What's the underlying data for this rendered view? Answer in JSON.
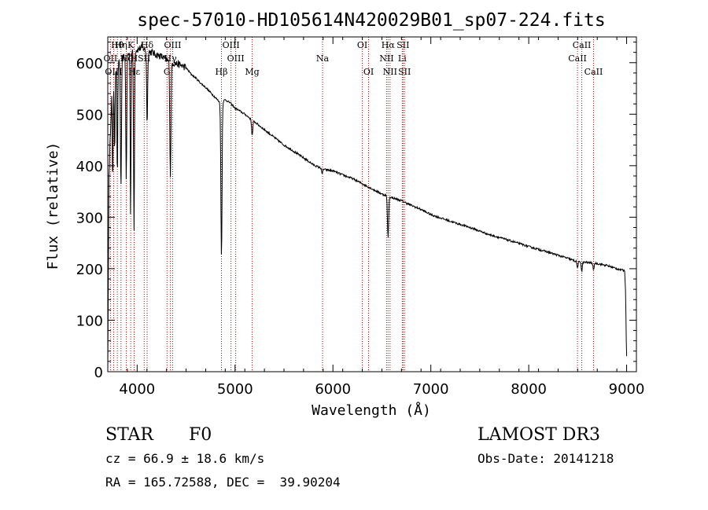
{
  "chart_data": {
    "type": "line",
    "title": "spec-57010-HD105614N420029B01_sp07-224.fits",
    "xlabel": "Wavelength (Å)",
    "ylabel": "Flux (relative)",
    "xlim": [
      3700,
      9100
    ],
    "ylim": [
      0,
      650
    ],
    "xticks": [
      4000,
      5000,
      6000,
      7000,
      8000,
      9000
    ],
    "yticks": [
      0,
      100,
      200,
      300,
      400,
      500,
      600
    ],
    "series": [
      {
        "name": "spectrum",
        "continuum": [
          [
            3700,
            0
          ],
          [
            3712,
            380
          ],
          [
            3740,
            540
          ],
          [
            3780,
            590
          ],
          [
            3820,
            600
          ],
          [
            3860,
            610
          ],
          [
            3900,
            615
          ],
          [
            3950,
            625
          ],
          [
            4000,
            625
          ],
          [
            4050,
            630
          ],
          [
            4100,
            622
          ],
          [
            4150,
            620
          ],
          [
            4200,
            615
          ],
          [
            4250,
            612
          ],
          [
            4300,
            605
          ],
          [
            4350,
            600
          ],
          [
            4400,
            598
          ],
          [
            4450,
            595
          ],
          [
            4500,
            590
          ],
          [
            4550,
            578
          ],
          [
            4600,
            570
          ],
          [
            4650,
            560
          ],
          [
            4700,
            552
          ],
          [
            4750,
            542
          ],
          [
            4800,
            532
          ],
          [
            4850,
            522
          ],
          [
            4900,
            528
          ],
          [
            4950,
            522
          ],
          [
            5000,
            512
          ],
          [
            5100,
            500
          ],
          [
            5200,
            485
          ],
          [
            5300,
            470
          ],
          [
            5400,
            455
          ],
          [
            5500,
            440
          ],
          [
            5600,
            428
          ],
          [
            5700,
            415
          ],
          [
            5800,
            402
          ],
          [
            5900,
            393
          ],
          [
            6000,
            390
          ],
          [
            6100,
            382
          ],
          [
            6200,
            375
          ],
          [
            6300,
            365
          ],
          [
            6400,
            355
          ],
          [
            6500,
            345
          ],
          [
            6600,
            338
          ],
          [
            6700,
            332
          ],
          [
            6800,
            323
          ],
          [
            6900,
            315
          ],
          [
            7000,
            305
          ],
          [
            7200,
            292
          ],
          [
            7400,
            280
          ],
          [
            7600,
            266
          ],
          [
            7800,
            255
          ],
          [
            8000,
            243
          ],
          [
            8200,
            232
          ],
          [
            8400,
            220
          ],
          [
            8500,
            213
          ],
          [
            8600,
            212
          ],
          [
            8700,
            210
          ],
          [
            8800,
            206
          ],
          [
            8900,
            200
          ],
          [
            8980,
            196
          ],
          [
            8990,
            150
          ],
          [
            8995,
            70
          ],
          [
            9000,
            30
          ]
        ],
        "absorption": [
          {
            "center": 3750,
            "depth": 190,
            "width": 4
          },
          {
            "center": 3770,
            "depth": 160,
            "width": 4
          },
          {
            "center": 3798,
            "depth": 220,
            "width": 4
          },
          {
            "center": 3835,
            "depth": 250,
            "width": 5
          },
          {
            "center": 3889,
            "depth": 240,
            "width": 5
          },
          {
            "center": 3933,
            "depth": 320,
            "width": 4
          },
          {
            "center": 3968,
            "depth": 350,
            "width": 5
          },
          {
            "center": 4102,
            "depth": 140,
            "width": 5
          },
          {
            "center": 4340,
            "depth": 220,
            "width": 6
          },
          {
            "center": 4861,
            "depth": 300,
            "width": 6
          },
          {
            "center": 5175,
            "depth": 30,
            "width": 6
          },
          {
            "center": 5890,
            "depth": 12,
            "width": 4
          },
          {
            "center": 6563,
            "depth": 80,
            "width": 6
          },
          {
            "center": 8498,
            "depth": 12,
            "width": 5
          },
          {
            "center": 8542,
            "depth": 18,
            "width": 5
          },
          {
            "center": 8662,
            "depth": 15,
            "width": 5
          }
        ]
      }
    ],
    "lines": [
      {
        "label": "Hθ",
        "x": 3798,
        "row": 1
      },
      {
        "label": "OII",
        "x": 3727,
        "row": 2
      },
      {
        "label": "OIII",
        "x": 3760,
        "row": 3
      },
      {
        "label": "Hη",
        "x": 3835,
        "row": 1
      },
      {
        "label": "Hζ",
        "x": 3889,
        "row": 2
      },
      {
        "label": "Hε",
        "x": 3970,
        "row": 3
      },
      {
        "label": "K",
        "x": 3934,
        "row": 1
      },
      {
        "label": "H",
        "x": 3969,
        "row": 2
      },
      {
        "label": "Hδ",
        "x": 4102,
        "row": 1
      },
      {
        "label": "SII",
        "x": 4072,
        "row": 2
      },
      {
        "label": "G",
        "x": 4305,
        "row": 3
      },
      {
        "label": "OIII",
        "x": 4363,
        "row": 1
      },
      {
        "label": "Hγ",
        "x": 4340,
        "row": 2
      },
      {
        "label": "Hβ",
        "x": 4861,
        "row": 3
      },
      {
        "label": "OIII",
        "x": 4959,
        "row": 1
      },
      {
        "label": "OIII",
        "x": 5007,
        "row": 2
      },
      {
        "label": "Mg",
        "x": 5175,
        "row": 3
      },
      {
        "label": "Na",
        "x": 5894,
        "row": 2
      },
      {
        "label": "OI",
        "x": 6300,
        "row": 1
      },
      {
        "label": "OI",
        "x": 6364,
        "row": 3
      },
      {
        "label": "Hα",
        "x": 6563,
        "row": 1
      },
      {
        "label": "NII",
        "x": 6548,
        "row": 2
      },
      {
        "label": "NII",
        "x": 6583,
        "row": 3
      },
      {
        "label": "SII",
        "x": 6716,
        "row": 1
      },
      {
        "label": "Li",
        "x": 6708,
        "row": 2
      },
      {
        "label": "SII",
        "x": 6731,
        "row": 3
      },
      {
        "label": "CaII",
        "x": 8542,
        "row": 1
      },
      {
        "label": "CaII",
        "x": 8498,
        "row": 2
      },
      {
        "label": "CaII",
        "x": 8662,
        "row": 3
      }
    ]
  },
  "info": {
    "class_label": "STAR",
    "subclass": "F0",
    "survey": "LAMOST DR3",
    "redshift": "cz = 66.9 ± 18.6 km/s",
    "obs_date": "Obs-Date: 20141218",
    "coords": "RA = 165.72588, DEC =  39.90204"
  },
  "colors": {
    "line_marker": "#cc0000",
    "spectrum": "#000000",
    "axes": "#000000"
  }
}
